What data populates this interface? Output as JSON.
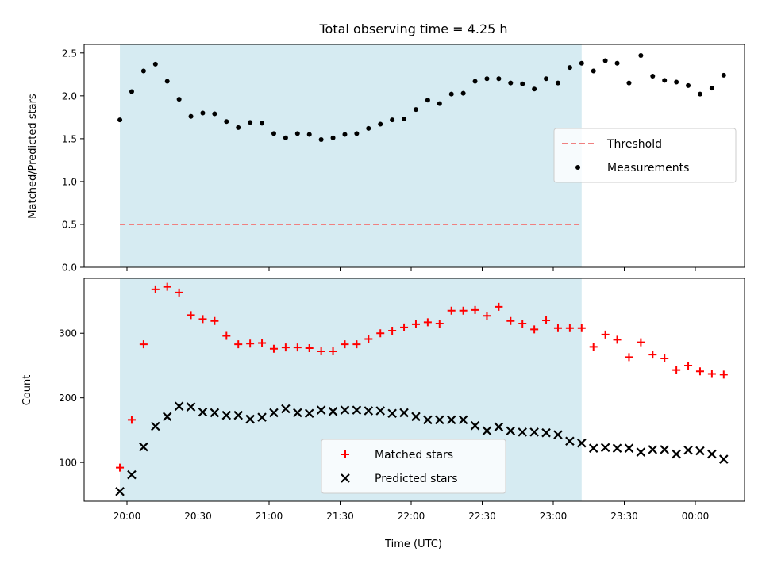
{
  "chart_data": {
    "type": "scatter",
    "title": "Total observing time = 4.25 h",
    "xlabel": "Time (UTC)",
    "x_ticks": [
      "20:00",
      "20:30",
      "21:00",
      "21:30",
      "22:00",
      "22:30",
      "23:00",
      "23:30",
      "00:00"
    ],
    "shaded_interval": [
      "19:57",
      "23:12"
    ],
    "x": [
      "19:57",
      "20:02",
      "20:07",
      "20:12",
      "20:17",
      "20:22",
      "20:27",
      "20:32",
      "20:37",
      "20:42",
      "20:47",
      "20:52",
      "20:57",
      "21:02",
      "21:07",
      "21:12",
      "21:17",
      "21:22",
      "21:27",
      "21:32",
      "21:37",
      "21:42",
      "21:47",
      "21:52",
      "21:57",
      "22:02",
      "22:07",
      "22:12",
      "22:17",
      "22:22",
      "22:27",
      "22:32",
      "22:37",
      "22:42",
      "22:47",
      "22:52",
      "22:57",
      "23:02",
      "23:07",
      "23:12",
      "23:17",
      "23:22",
      "23:27",
      "23:32",
      "23:37",
      "23:42",
      "23:47",
      "23:52",
      "23:57",
      "00:02",
      "00:07",
      "00:12"
    ],
    "panels": [
      {
        "ylabel": "Matched/Predicted stars",
        "ylim": [
          0,
          2.6
        ],
        "y_ticks": [
          "0.0",
          "0.5",
          "1.0",
          "1.5",
          "2.0",
          "2.5"
        ],
        "legend_position": "center-right",
        "series": [
          {
            "name": "Threshold",
            "style": "dashed-line",
            "color": "#f08080",
            "values": [
              0.5
            ]
          },
          {
            "name": "Measurements",
            "style": "dot",
            "color": "#000000",
            "values": [
              1.72,
              2.05,
              2.29,
              2.37,
              2.17,
              1.96,
              1.76,
              1.8,
              1.79,
              1.7,
              1.63,
              1.69,
              1.68,
              1.56,
              1.51,
              1.56,
              1.55,
              1.49,
              1.51,
              1.55,
              1.56,
              1.62,
              1.67,
              1.72,
              1.73,
              1.84,
              1.95,
              1.91,
              2.02,
              2.03,
              2.17,
              2.2,
              2.2,
              2.15,
              2.14,
              2.08,
              2.2,
              2.15,
              2.33,
              2.38,
              2.29,
              2.41,
              2.38,
              2.15,
              2.47,
              2.23,
              2.18,
              2.16,
              2.12,
              2.02,
              2.09,
              2.24
            ]
          }
        ]
      },
      {
        "ylabel": "Count",
        "ylim": [
          40,
          385
        ],
        "y_ticks": [
          "100",
          "200",
          "300"
        ],
        "legend_position": "bottom-center",
        "series": [
          {
            "name": "Matched stars",
            "style": "plus",
            "color": "#ff0000",
            "values": [
              92,
              166,
              283,
              368,
              372,
              363,
              328,
              322,
              319,
              296,
              283,
              284,
              285,
              276,
              278,
              278,
              277,
              272,
              272,
              283,
              283,
              291,
              300,
              304,
              309,
              314,
              317,
              315,
              335,
              335,
              336,
              327,
              341,
              319,
              315,
              306,
              320,
              308,
              308,
              308,
              279,
              298,
              290,
              263,
              286,
              267,
              261,
              243,
              250,
              241,
              237,
              236
            ]
          },
          {
            "name": "Predicted stars",
            "style": "x",
            "color": "#000000",
            "values": [
              55,
              81,
              124,
              156,
              171,
              187,
              186,
              178,
              177,
              173,
              173,
              167,
              170,
              177,
              183,
              177,
              176,
              181,
              179,
              181,
              181,
              180,
              180,
              176,
              177,
              171,
              166,
              166,
              166,
              166,
              157,
              149,
              155,
              149,
              147,
              147,
              146,
              143,
              133,
              130,
              122,
              123,
              122,
              122,
              116,
              120,
              120,
              113,
              119,
              118,
              113,
              105
            ]
          }
        ]
      }
    ]
  }
}
